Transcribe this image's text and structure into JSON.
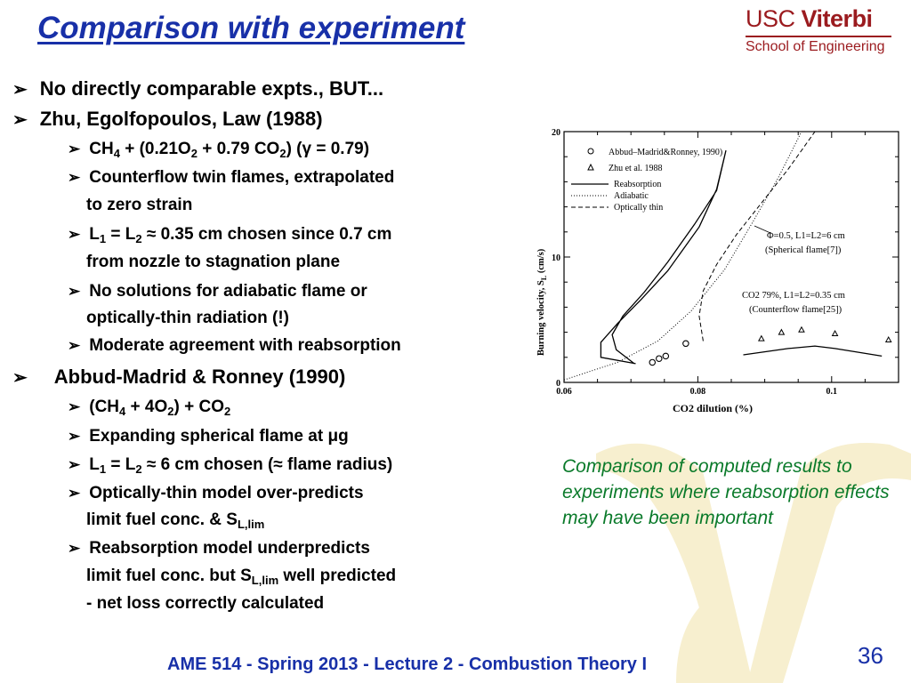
{
  "slide": {
    "title": "Comparison with experiment",
    "logo": {
      "usc": "USC",
      "viterbi": "Viterbi",
      "school": "School of Engineering"
    },
    "footer": "AME 514 - Spring 2013 - Lecture 2 - Combustion Theory I",
    "page_number": "36"
  },
  "bullets": {
    "b1": "No directly comparable expts., BUT...",
    "b2": "Zhu, Egolfopoulos, Law (1988)",
    "b2_1": {
      "a": "CH",
      "s1": "4",
      "b": " + (0.21O",
      "s2": "2",
      "c": " + 0.79 CO",
      "s3": "2",
      "d": ") (γ = 0.79)"
    },
    "b2_2": {
      "line1": "Counterflow twin flames, extrapolated",
      "line2": "to zero strain"
    },
    "b2_3": {
      "a": "L",
      "s1": "1",
      "b": " = L",
      "s2": "2",
      "c": " ≈ 0.35 cm chosen since 0.7 cm",
      "line2": "from nozzle to stagnation plane"
    },
    "b2_4": {
      "line1": "No solutions for adiabatic flame or",
      "line2": "optically-thin radiation (!)"
    },
    "b2_5": "Moderate agreement with reabsorption",
    "b3": "Abbud-Madrid & Ronney (1990)",
    "b3_1": {
      "a": "(CH",
      "s1": "4",
      "b": " + 4O",
      "s2": "2",
      "c": ") + CO",
      "s3": "2"
    },
    "b3_2": "Expanding spherical flame at μg",
    "b3_3": {
      "a": "L",
      "s1": "1",
      "b": " = L",
      "s2": "2",
      "c": " ≈ 6 cm chosen (≈ flame radius)"
    },
    "b3_4": {
      "line1": "Optically-thin model over-predicts",
      "line2a": "limit fuel conc. & S",
      "line2s": "L,lim"
    },
    "b3_5": {
      "line1": "Reabsorption model underpredicts",
      "line2a": "limit fuel conc. but S",
      "line2s": "L,lim",
      "line2b": " well predicted",
      "line3": "- net loss correctly calculated"
    }
  },
  "caption": "Comparison of computed results to experiments where reabsorption effects may have been important",
  "figure": {
    "legend": {
      "abbud": "Abbud–Madrid&Ronney, 1990)",
      "zhu": "Zhu  et  al.  1988",
      "reabsorption": "Reabsorption",
      "adiabatic": "Adiabatic",
      "optically_thin": "Optically  thin"
    },
    "annotation_sph_1": "Φ=0.5,  L1=L2=6  cm",
    "annotation_sph_2": "(Spherical  flame[7])",
    "annotation_cf_1": "CO2  79%,  L1=L2=0.35  cm",
    "annotation_cf_2": "(Counterflow  flame[25])",
    "ylabel_text": "Burning  velocity,  S",
    "ylabel_sub": "L",
    "ylabel_unit": "  (cm/s)",
    "yticks": [
      "0",
      "10",
      "20"
    ],
    "xticks": [
      "0.06",
      "0.08",
      "0.1"
    ],
    "xlabel": "CO2  dilution  (%)"
  },
  "chart_data": {
    "type": "scatter",
    "title": "",
    "xlabel": "CO2  dilution  (%)",
    "ylabel": "Burning  velocity,  SL  (cm/s)",
    "xlim": [
      0.06,
      0.11
    ],
    "ylim": [
      0,
      20
    ],
    "series": [
      {
        "name": "Abbud–Madrid&Ronney, 1990)",
        "marker": "circle",
        "x": [
          0.0732,
          0.0742,
          0.0752,
          0.0782
        ],
        "y": [
          1.6,
          1.9,
          2.1,
          3.1
        ]
      },
      {
        "name": "Zhu  et  al.  1988",
        "marker": "triangle",
        "x": [
          0.0895,
          0.0925,
          0.0955,
          0.1005,
          0.1085
        ],
        "y": [
          3.5,
          4.0,
          4.2,
          3.9,
          3.4
        ]
      },
      {
        "name": "Reabsorption",
        "style": "solid",
        "curves": [
          {
            "x": [
              0.0707,
              0.0655,
              0.0655,
              0.068,
              0.0715,
              0.0755,
              0.0802,
              0.0828,
              0.0842,
              0.0828,
              0.0795,
              0.0755,
              0.072,
              0.0688,
              0.0672,
              0.0678,
              0.0705
            ],
            "y": [
              1.5,
              2.0,
              3.2,
              4.7,
              6.6,
              8.9,
              12.4,
              15.4,
              18.5,
              15.3,
              12.6,
              9.6,
              7.2,
              5.3,
              3.8,
              2.6,
              1.5
            ]
          },
          {
            "x": [
              0.0868,
              0.0935,
              0.0975,
              0.1005,
              0.1075
            ],
            "y": [
              2.2,
              2.7,
              2.9,
              2.7,
              2.1
            ]
          }
        ]
      },
      {
        "name": "Adiabatic",
        "style": "dotted",
        "x": [
          0.06,
          0.068,
          0.074,
          0.079,
          0.084,
          0.088,
          0.092,
          0.0955
        ],
        "y": [
          0.2,
          1.6,
          3.3,
          5.7,
          9.0,
          12.6,
          16.3,
          20
        ]
      },
      {
        "name": "Optically  thin",
        "style": "dashed",
        "x": [
          0.0808,
          0.0802,
          0.0808,
          0.0828,
          0.0858,
          0.0892,
          0.0935,
          0.0975
        ],
        "y": [
          3.3,
          5.3,
          7.3,
          9.4,
          11.8,
          14.1,
          17.0,
          20
        ]
      }
    ]
  }
}
